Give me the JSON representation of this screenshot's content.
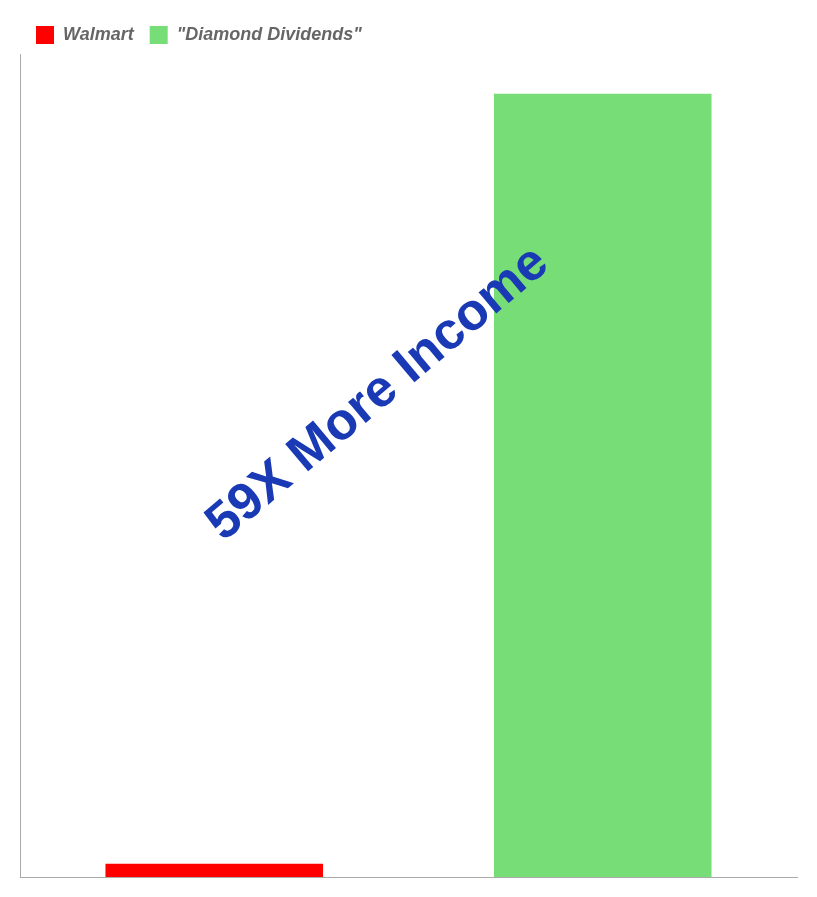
{
  "chart_data": {
    "type": "bar",
    "categories": [
      null,
      null
    ],
    "series": [
      {
        "name": "Walmart",
        "color": "#ff0000",
        "values": [
          1,
          null
        ]
      },
      {
        "name": "\"Diamond Dividends\"",
        "color": "#77dd77",
        "values": [
          null,
          59
        ]
      }
    ],
    "ylim": [
      0,
      62
    ],
    "grid": false,
    "tick_labels": false,
    "legend": "upper left",
    "annotations": [
      {
        "text": "59X More Income",
        "color": "#1a3ab5"
      }
    ]
  }
}
